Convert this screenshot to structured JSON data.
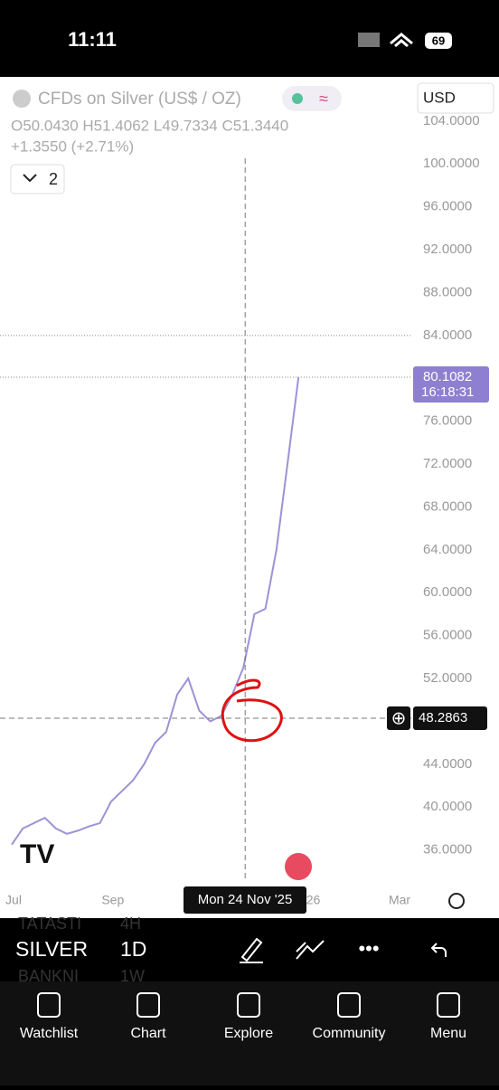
{
  "status_bar": {
    "time": "11:11",
    "battery": "69"
  },
  "header": {
    "symbol": "CFDs on Silver (US$ / OZ)",
    "currency": "USD",
    "ohlc": "O50.0430 H51.4062 L49.7334 C51.3440",
    "change": "+1.3550 (+2.71%)",
    "indicators_count": "2"
  },
  "chart_data": {
    "type": "line",
    "color": "#9b93d6",
    "categories": [
      "Jul",
      null,
      null,
      null,
      null,
      null,
      null,
      null,
      null,
      "Sep",
      null,
      null,
      null,
      null,
      null,
      null,
      null,
      null,
      null,
      null,
      null,
      null,
      null,
      null,
      null,
      null,
      "'26",
      null,
      null,
      null,
      null,
      null,
      null,
      null,
      null,
      "Mar"
    ],
    "values": [
      36.5,
      38,
      38.5,
      39,
      38,
      37.5,
      37.8,
      38.2,
      38.5,
      40.5,
      41.5,
      42.5,
      44,
      46,
      47,
      50.5,
      52,
      49,
      48,
      48.5,
      50.5,
      53,
      58,
      58.5,
      64,
      72,
      80.1082,
      null,
      null,
      null,
      null,
      null,
      null,
      null,
      null,
      null
    ],
    "ylim": [
      34.7,
      107.7
    ],
    "yticks": [
      {
        "value": 36,
        "label": "36.0000"
      },
      {
        "value": 40,
        "label": "40.0000"
      },
      {
        "value": 44,
        "label": "44.0000"
      },
      {
        "value": 48,
        "label": "48.0000"
      },
      {
        "value": 52,
        "label": "52.0000"
      },
      {
        "value": 56,
        "label": "56.0000"
      },
      {
        "value": 60,
        "label": "60.0000"
      },
      {
        "value": 64,
        "label": "64.0000"
      },
      {
        "value": 68,
        "label": "68.0000"
      },
      {
        "value": 72,
        "label": "72.0000"
      },
      {
        "value": 76,
        "label": "76.0000"
      },
      {
        "value": 80,
        "label": "80.0000"
      },
      {
        "value": 84,
        "label": "84.0000"
      },
      {
        "value": 88,
        "label": "88.0000"
      },
      {
        "value": 92,
        "label": "92.0000"
      },
      {
        "value": 96,
        "label": "96.0000"
      },
      {
        "value": 100,
        "label": "100.0000"
      },
      {
        "value": 104,
        "label": "104.0000"
      }
    ],
    "last_price": 80.1082,
    "countdown": "16:18:31",
    "high_line": 84,
    "crosshair": {
      "x_label": "Mon 24 Nov '25",
      "y_value": 48.2863
    }
  },
  "toolbar": {
    "symbol": "SILVER",
    "interval": "1D",
    "behind": [
      "TATASTI",
      "4H",
      "BANKNI",
      "1W"
    ]
  },
  "nav": [
    "Watchlist",
    "Chart",
    "Explore",
    "Community",
    "Menu"
  ]
}
